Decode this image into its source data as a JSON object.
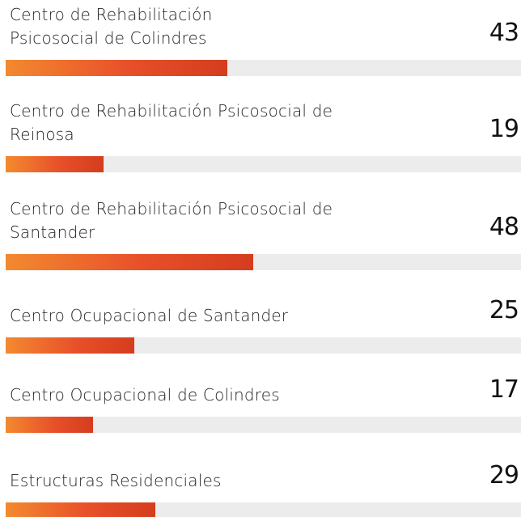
{
  "chart_data": {
    "type": "bar",
    "categories": [
      "Centro de Rehabilitación Psicosocial de Colindres",
      "Centro de Rehabilitación Psicosocial de Reinosa",
      "Centro de Rehabilitación Psicosocial de Santander",
      "Centro Ocupacional de Santander",
      "Centro Ocupacional de Colindres",
      "Estructuras Residenciales"
    ],
    "values": [
      43,
      19,
      48,
      25,
      17,
      29
    ],
    "color": "#e8502a",
    "xlim": [
      0,
      100
    ]
  }
}
